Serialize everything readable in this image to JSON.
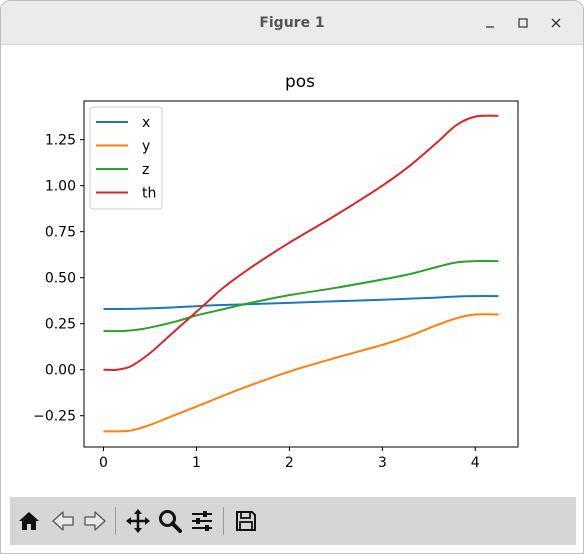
{
  "window": {
    "title": "Figure 1"
  },
  "toolbar": {
    "buttons": [
      {
        "icon": "home-icon"
      },
      {
        "icon": "back-arrow-icon"
      },
      {
        "icon": "forward-arrow-icon"
      },
      {
        "icon": "pan-icon"
      },
      {
        "icon": "zoom-icon"
      },
      {
        "icon": "configure-subplots-icon"
      },
      {
        "icon": "save-icon"
      }
    ]
  },
  "chart_data": {
    "type": "line",
    "title": "pos",
    "xlabel": "",
    "ylabel": "",
    "xlim": [
      -0.21,
      4.46
    ],
    "ylim": [
      -0.42,
      1.46
    ],
    "xticks": [
      0,
      1,
      2,
      3,
      4
    ],
    "xtick_labels": [
      "0",
      "1",
      "2",
      "3",
      "4"
    ],
    "yticks": [
      -0.25,
      0.0,
      0.25,
      0.5,
      0.75,
      1.0,
      1.25
    ],
    "ytick_labels": [
      "−0.25",
      "0.00",
      "0.25",
      "0.50",
      "0.75",
      "1.00",
      "1.25"
    ],
    "grid": false,
    "legend_position": "upper-left",
    "series": [
      {
        "name": "x",
        "color": "#1f77b4",
        "x": [
          0,
          0.2,
          0.4,
          0.6,
          0.8,
          1.0,
          1.2,
          1.5,
          2.0,
          2.5,
          3.0,
          3.5,
          3.8,
          4.0,
          4.25
        ],
        "y": [
          0.33,
          0.33,
          0.332,
          0.335,
          0.34,
          0.345,
          0.35,
          0.355,
          0.363,
          0.372,
          0.38,
          0.39,
          0.398,
          0.4,
          0.4
        ]
      },
      {
        "name": "y",
        "color": "#ff7f0e",
        "x": [
          0,
          0.15,
          0.3,
          0.5,
          0.7,
          1.0,
          1.5,
          2.0,
          2.5,
          3.0,
          3.3,
          3.6,
          3.8,
          4.0,
          4.25
        ],
        "y": [
          -0.335,
          -0.335,
          -0.33,
          -0.3,
          -0.26,
          -0.2,
          -0.1,
          -0.01,
          0.065,
          0.135,
          0.185,
          0.245,
          0.28,
          0.3,
          0.3
        ]
      },
      {
        "name": "z",
        "color": "#2ca02c",
        "x": [
          0,
          0.2,
          0.4,
          0.6,
          0.8,
          1.0,
          1.3,
          1.6,
          2.0,
          2.5,
          3.0,
          3.3,
          3.6,
          3.8,
          4.0,
          4.25
        ],
        "y": [
          0.21,
          0.21,
          0.22,
          0.24,
          0.265,
          0.295,
          0.33,
          0.365,
          0.405,
          0.445,
          0.49,
          0.52,
          0.56,
          0.583,
          0.59,
          0.59
        ]
      },
      {
        "name": "th",
        "color": "#d62728",
        "x": [
          0,
          0.15,
          0.3,
          0.5,
          0.7,
          0.9,
          1.1,
          1.3,
          1.6,
          2.0,
          2.5,
          3.0,
          3.3,
          3.6,
          3.8,
          4.0,
          4.25
        ],
        "y": [
          0.0,
          0.0,
          0.02,
          0.09,
          0.18,
          0.27,
          0.36,
          0.45,
          0.56,
          0.69,
          0.84,
          1.0,
          1.11,
          1.24,
          1.33,
          1.375,
          1.38
        ]
      }
    ]
  }
}
